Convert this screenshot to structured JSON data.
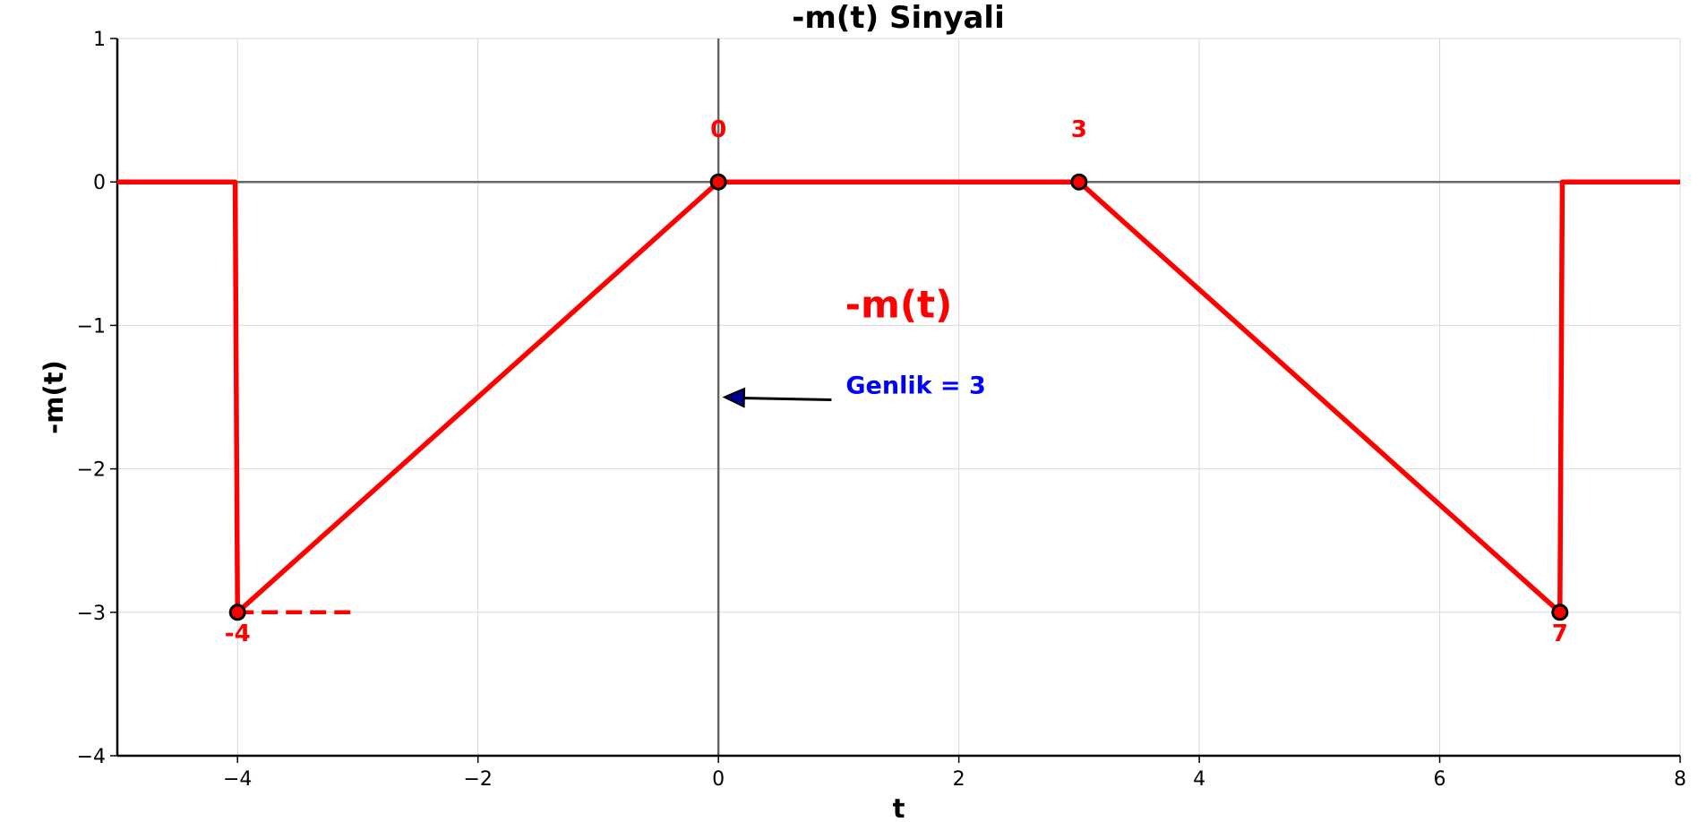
{
  "chart_data": {
    "type": "line",
    "title": "-m(t) Sinyali",
    "xlabel": "t",
    "ylabel": "-m(t)",
    "xlim": [
      -5,
      8
    ],
    "ylim": [
      -4,
      1
    ],
    "xticks": [
      -4,
      -2,
      0,
      2,
      4,
      6,
      8
    ],
    "xtick_labels": [
      "−4",
      "−2",
      "0",
      "2",
      "4",
      "6",
      "8"
    ],
    "yticks": [
      -4,
      -3,
      -2,
      -1,
      0,
      1
    ],
    "ytick_labels": [
      "−4",
      "−3",
      "−2",
      "−1",
      "0",
      "1"
    ],
    "grid": true,
    "series": [
      {
        "name": "-m(t)",
        "color": "#ff0000",
        "x": [
          -5,
          -4.02,
          -4,
          0,
          3,
          7,
          7.02,
          8
        ],
        "y": [
          0,
          0,
          -3,
          0,
          0,
          -3,
          0,
          0
        ]
      }
    ],
    "reference_segment": {
      "x": [
        -4,
        -3
      ],
      "y": [
        -3,
        -3
      ],
      "color": "#ff0000",
      "style": "dashed"
    },
    "markers": [
      {
        "x": -4,
        "y": -3,
        "label": "-4",
        "label_pos": "below"
      },
      {
        "x": 0,
        "y": 0,
        "label": "0",
        "label_pos": "above"
      },
      {
        "x": 3,
        "y": 0,
        "label": "3",
        "label_pos": "above"
      },
      {
        "x": 7,
        "y": -3,
        "label": "7",
        "label_pos": "below"
      }
    ],
    "annotations": [
      {
        "text": "-m(t)",
        "x": 1.5,
        "y": -0.9,
        "color": "#ff0000",
        "kind": "series-label"
      },
      {
        "text": "Genlik = 3",
        "x": 1.0,
        "y": -1.45,
        "color": "#0000ff",
        "kind": "arrow-label",
        "arrow_to": [
          0.05,
          -1.5
        ]
      }
    ],
    "colors": {
      "signal": "#ff0000",
      "annotation": "#0000ff",
      "axis_lines": "#666666",
      "grid": "#d9d9d9",
      "marker_edge": "#000000"
    }
  }
}
